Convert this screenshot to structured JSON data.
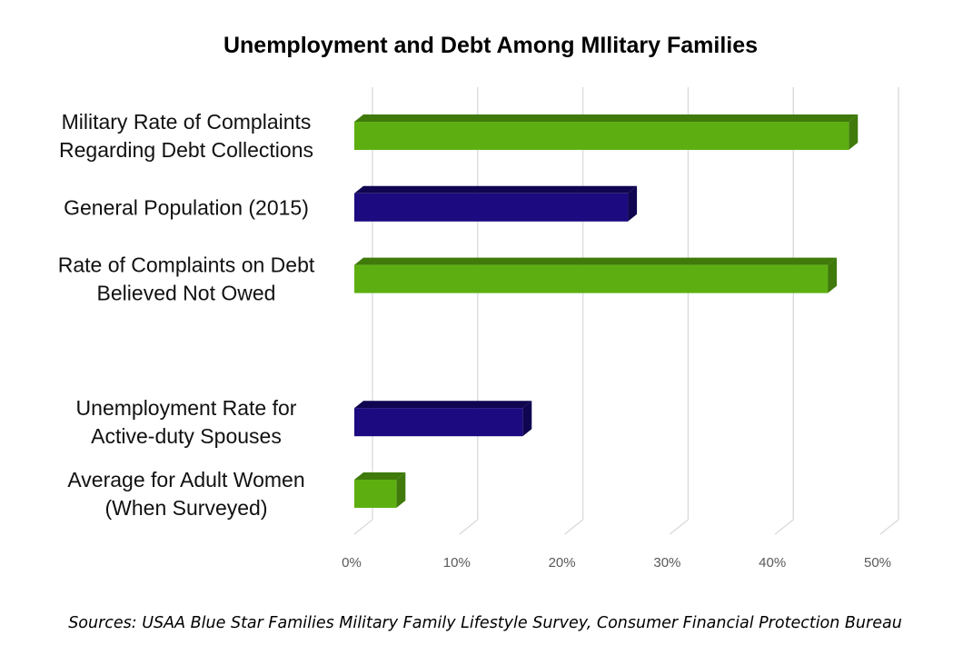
{
  "chart_data": {
    "type": "bar",
    "orientation": "horizontal",
    "title": "Unemployment and Debt Among MIlitary Families",
    "categories": [
      [
        "Military Rate of Complaints",
        "Regarding Debt Collections"
      ],
      [
        "General Population (2015)"
      ],
      [
        "Rate of Complaints on Debt",
        "Believed Not Owed"
      ],
      [],
      [
        "Unemployment Rate for",
        "Active-duty Spouses"
      ],
      [
        "Average for Adult Women",
        "(When Surveyed)"
      ]
    ],
    "values": [
      47,
      26,
      45,
      null,
      16,
      4
    ],
    "bar_colors": [
      "#5daf11",
      "#1c0a80",
      "#5daf11",
      null,
      "#1c0a80",
      "#5daf11"
    ],
    "bar_side_colors": [
      "#3f7a0a",
      "#0f0550",
      "#3f7a0a",
      null,
      "#0f0550",
      "#3f7a0a"
    ],
    "xlim": [
      0,
      50
    ],
    "xticks": [
      "0%",
      "10%",
      "20%",
      "30%",
      "40%",
      "50%"
    ],
    "grid": true,
    "style": "3d",
    "source": "Sources: USAA Blue Star Families Military Family Lifestyle Survey, Consumer Financial Protection Bureau"
  }
}
